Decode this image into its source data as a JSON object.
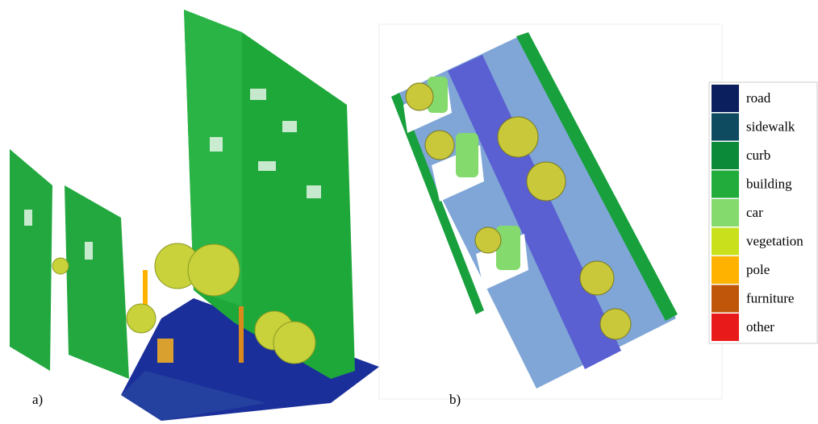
{
  "panels": [
    {
      "label": "a)"
    },
    {
      "label": "b)"
    }
  ],
  "legend": [
    {
      "label": "road",
      "color": "#0b1f5e"
    },
    {
      "label": "sidewalk",
      "color": "#0e4b60"
    },
    {
      "label": "curb",
      "color": "#0b8a3a"
    },
    {
      "label": "building",
      "color": "#22ac3c"
    },
    {
      "label": "car",
      "color": "#84da6c"
    },
    {
      "label": "vegetation",
      "color": "#c9e11c"
    },
    {
      "label": "pole",
      "color": "#ffb300"
    },
    {
      "label": "furniture",
      "color": "#c0560a"
    },
    {
      "label": "other",
      "color": "#e81a1a"
    }
  ]
}
